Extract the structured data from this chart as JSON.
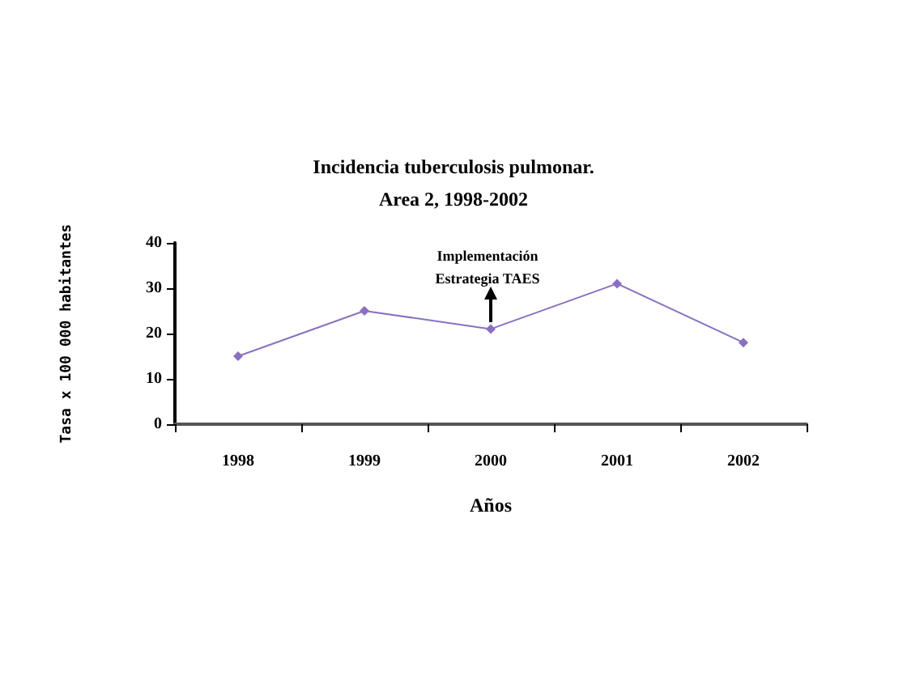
{
  "chart_data": {
    "type": "line",
    "title": "Incidencia tuberculosis pulmonar.",
    "subtitle": "Area 2, 1998-2002",
    "xlabel": "Años",
    "ylabel": "Tasa x 100 000 habitantes",
    "categories": [
      "1998",
      "1999",
      "2000",
      "2001",
      "2002"
    ],
    "series": [
      {
        "color": "#8a70c0",
        "values": [
          15,
          25,
          21,
          31,
          18
        ]
      }
    ],
    "ylim": [
      0,
      40
    ],
    "yticks": [
      0,
      10,
      20,
      30,
      40
    ],
    "grid": false,
    "marker": "diamond",
    "line_style": "solid",
    "annotations": [
      {
        "text": "Implementación\nEstrategia TAES",
        "x": "2000",
        "y": 21
      }
    ]
  }
}
